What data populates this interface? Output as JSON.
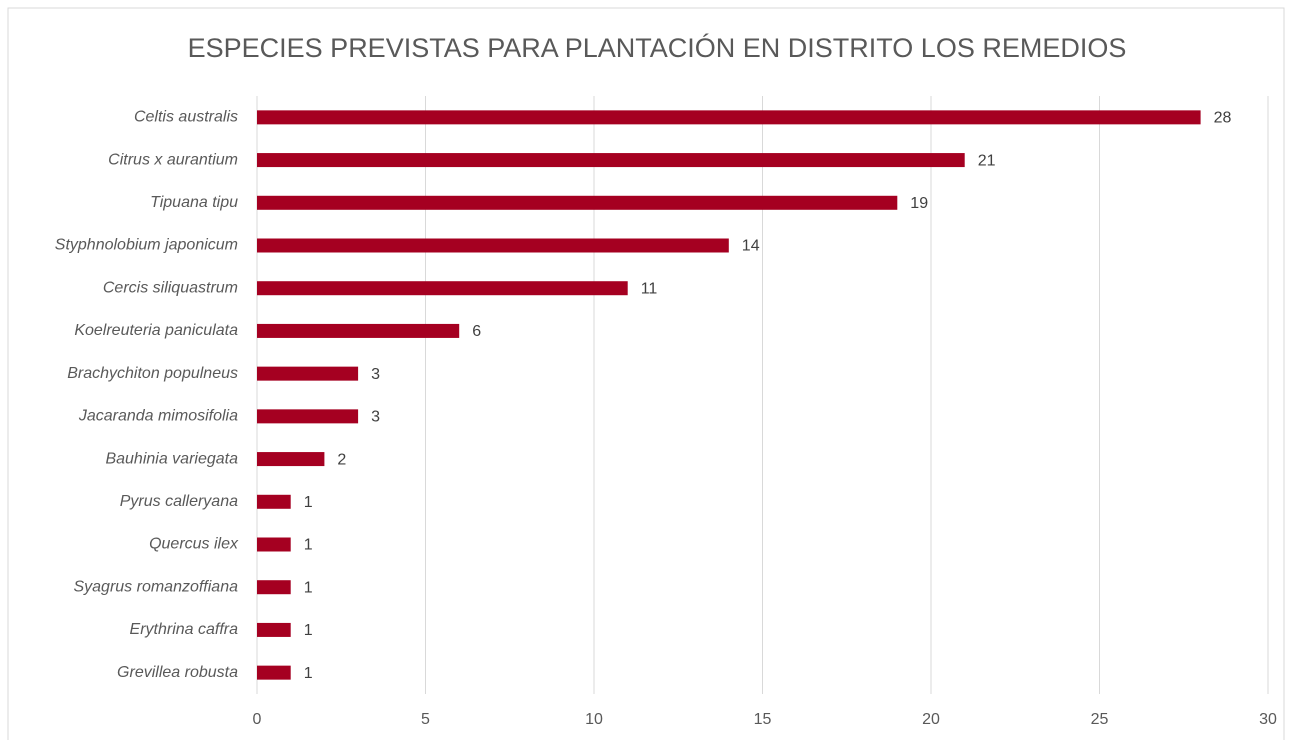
{
  "chart_data": {
    "type": "bar",
    "orientation": "horizontal",
    "title": "ESPECIES PREVISTAS PARA PLANTACIÓN EN DISTRITO LOS REMEDIOS",
    "categories": [
      "Celtis australis",
      "Citrus x aurantium",
      "Tipuana tipu",
      "Styphnolobium japonicum",
      "Cercis siliquastrum",
      "Koelreuteria paniculata",
      "Brachychiton populneus",
      "Jacaranda mimosifolia",
      "Bauhinia variegata",
      "Pyrus calleryana",
      "Quercus ilex",
      "Syagrus romanzoffiana",
      "Erythrina caffra",
      "Grevillea robusta"
    ],
    "values": [
      28,
      21,
      19,
      14,
      11,
      6,
      3,
      3,
      2,
      1,
      1,
      1,
      1,
      1
    ],
    "color": "#a50021",
    "xlim": [
      0,
      30
    ],
    "xticks": [
      0,
      5,
      10,
      15,
      20,
      25,
      30
    ],
    "grid": true
  }
}
